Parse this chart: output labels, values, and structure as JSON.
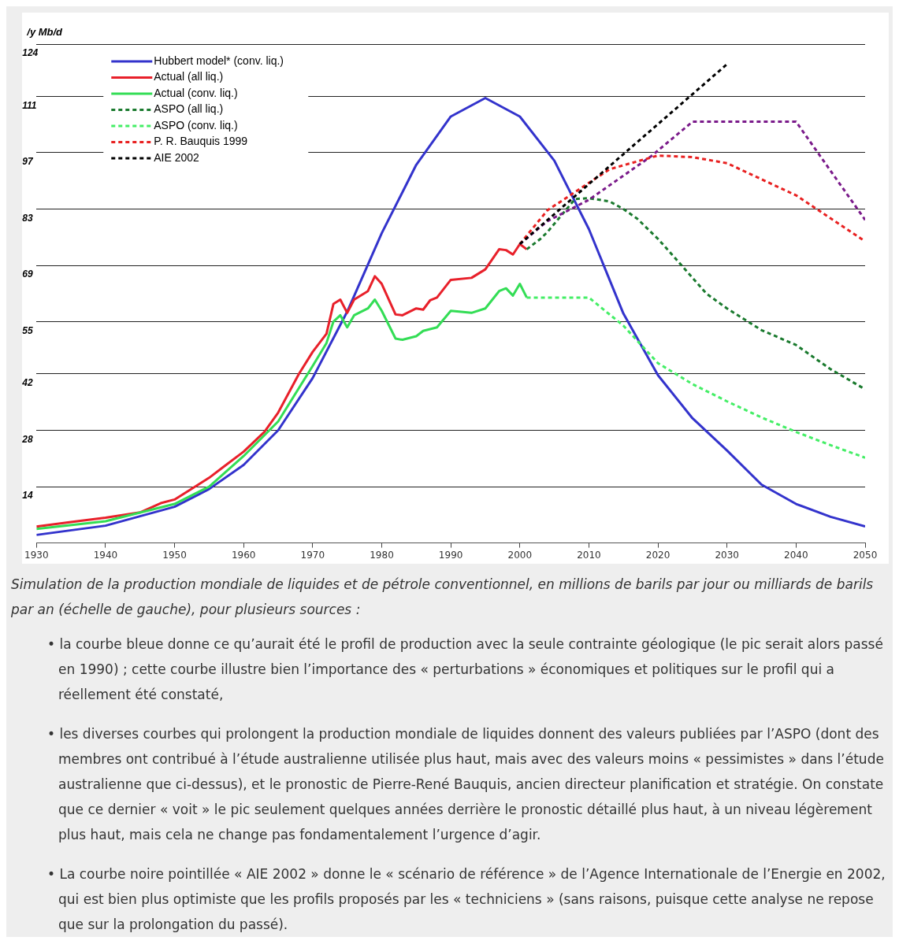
{
  "chart_data": {
    "type": "line",
    "ylabel": "/y Mb/d",
    "xlim": [
      1930,
      2050
    ],
    "xticks": [
      1930,
      1940,
      1950,
      1960,
      1970,
      1980,
      1990,
      2000,
      2010,
      2020,
      2030,
      2040,
      2050
    ],
    "ylim": [
      0,
      124
    ],
    "yticks": [
      14,
      28,
      42,
      55,
      69,
      83,
      97,
      111,
      124
    ],
    "grid": "y",
    "legend": "top left",
    "marker": "none",
    "series": [
      {
        "name": "Hubbert model* (conv. liq.)",
        "color": "#3333cc",
        "line_style": "solid",
        "x": [
          1930,
          1940,
          1950,
          1955,
          1960,
          1965,
          1970,
          1975,
          1980,
          1985,
          1990,
          1995,
          2000,
          2005,
          2010,
          2015,
          2020,
          2025,
          2030,
          2035,
          2040,
          2045,
          2050
        ],
        "values": [
          2,
          4.3,
          9,
          13.4,
          19.4,
          28,
          41,
          57.5,
          77,
          94,
          106,
          110.6,
          106,
          95,
          78,
          57,
          41.7,
          31,
          23,
          14.5,
          9.7,
          6.5,
          4.1
        ]
      },
      {
        "name": "Actual (all liq.)",
        "color": "#e8202a",
        "line_style": "solid",
        "x": [
          1930,
          1935,
          1940,
          1945,
          1948,
          1950,
          1955,
          1957,
          1960,
          1963,
          1965,
          1968,
          1970,
          1972,
          1973,
          1974,
          1975,
          1976,
          1978,
          1979,
          1980,
          1982,
          1983,
          1985,
          1986,
          1987,
          1988,
          1990,
          1993,
          1995,
          1997,
          1998,
          1999,
          2000,
          2001
        ],
        "values": [
          4.1,
          5.2,
          6.3,
          7.6,
          9.9,
          10.8,
          16.2,
          18.8,
          22.7,
          27.6,
          32.4,
          42,
          47.5,
          52,
          59.4,
          60.5,
          57.2,
          60.5,
          62.6,
          66.3,
          64.4,
          56.8,
          56.6,
          58.3,
          58,
          60.3,
          61,
          65.4,
          65.9,
          68,
          73,
          72.8,
          71.7,
          74.3,
          73
        ]
      },
      {
        "name": "Actual (conv. liq.)",
        "color": "#33dd55",
        "line_style": "solid",
        "x": [
          1930,
          1940,
          1950,
          1955,
          1960,
          1965,
          1970,
          1972,
          1973,
          1974,
          1975,
          1976,
          1978,
          1979,
          1980,
          1982,
          1983,
          1985,
          1986,
          1988,
          1990,
          1993,
          1995,
          1997,
          1998,
          1999,
          2000,
          2001
        ],
        "values": [
          3.5,
          5.4,
          9.7,
          14,
          21.6,
          30.2,
          44,
          49.7,
          55,
          56.6,
          53.6,
          56.6,
          58.3,
          60.5,
          57.7,
          50.8,
          50.5,
          51.4,
          52.7,
          53.6,
          57.7,
          57.2,
          58.3,
          62.6,
          63.3,
          61.5,
          64.4,
          61
        ]
      },
      {
        "name": "ASPO (all liq.)",
        "color": "#1a7a2e",
        "line_style": "dashed",
        "x": [
          2001,
          2003,
          2004,
          2008,
          2010,
          2013,
          2015,
          2017,
          2020,
          2023,
          2027,
          2030,
          2035,
          2040,
          2045,
          2050
        ],
        "values": [
          73,
          75.6,
          77.3,
          85.5,
          85.7,
          84.9,
          83,
          80.6,
          75.6,
          69.8,
          62,
          58.3,
          52.9,
          49.2,
          43.2,
          38.2
        ]
      },
      {
        "name": "ASPO (conv. liq.)",
        "color": "#44ee66",
        "line_style": "dashed",
        "x": [
          2001,
          2010,
          2015,
          2020,
          2025,
          2030,
          2035,
          2040,
          2045,
          2050
        ],
        "values": [
          61,
          61,
          54,
          44.7,
          39.5,
          35.2,
          31.2,
          27.6,
          24.3,
          21.2
        ]
      },
      {
        "color": "#7a1a8a",
        "line_style": "dashed",
        "x": [
          2000,
          2004,
          2010,
          2019,
          2025,
          2040,
          2050
        ],
        "values": [
          74.3,
          80,
          85.3,
          96.1,
          104.7,
          104.7,
          80.3
        ]
      },
      {
        "name": "P. R. Bauquis 1999",
        "color": "#e82020",
        "line_style": "dashed",
        "x": [
          2000,
          2004,
          2013,
          2020,
          2025,
          2030,
          2040,
          2050
        ],
        "values": [
          74.3,
          82.7,
          92.9,
          96.3,
          95.9,
          94.4,
          86.4,
          75
        ]
      },
      {
        "name": "AIE 2002",
        "color": "#000000",
        "line_style": "dashed",
        "x": [
          2000,
          2030
        ],
        "values": [
          74.3,
          119
        ]
      }
    ],
    "annotations": [
      "Simulation de la production mondiale de liquides et de pétrole conventionnel, en millions de barils par jour ou milliards de barils par an (échelle de gauche), pour plusieurs sources :",
      "• la courbe bleue donne ce qu’aurait été le profil de production avec la seule contrainte géologique (le pic serait alors passé en 1990) ; cette courbe illustre bien l’importance des « perturbations » économiques et politiques sur le profil qui a réellement été constaté,",
      "• les diverses courbes qui prolongent la production mondiale de liquides donnent des valeurs publiées par l’ASPO (dont des membres ont contribué à l’étude australienne utilisée plus haut, mais avec des valeurs moins « pessimistes » dans l’étude australienne que ci-dessus), et le pronostic de Pierre-René Bauquis, ancien directeur planification et stratégie. On constate que ce dernier « voit » le pic seulement quelques années derrière le pronostic détaillé plus haut, à un niveau légèrement plus haut, mais cela ne change pas fondamentalement l’urgence d’agir.",
      "• La courbe noire pointillée « AIE 2002 » donne le « scénario de référence » de l’Agence Internationale de l’Energie en 2002, qui est bien plus optimiste que les profils proposés par les « techniciens » (sans raisons, puisque cette analyse ne repose que sur la prolongation du passé)."
    ]
  }
}
